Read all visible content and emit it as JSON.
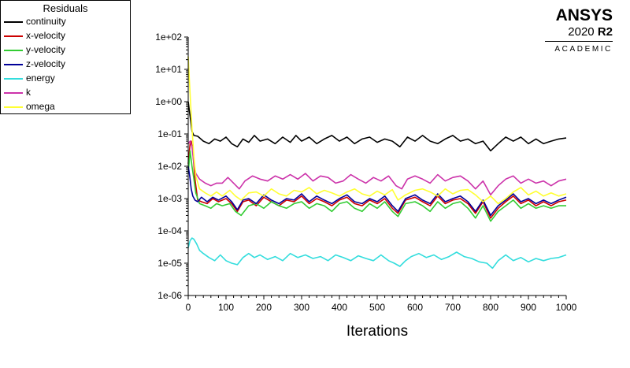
{
  "brand": {
    "name": "ANSYS",
    "version": "2020",
    "release": "R2",
    "edition": "ACADEMIC"
  },
  "chart_data": {
    "type": "line",
    "title": "",
    "xlabel": "Iterations",
    "ylabel": "",
    "xlim": [
      0,
      1000
    ],
    "ylim": [
      1e-06,
      100
    ],
    "yscale": "log",
    "grid": false,
    "legend_title": "Residuals",
    "legend_position": "top-left",
    "x_ticks": [
      "0",
      "100",
      "200",
      "300",
      "400",
      "500",
      "600",
      "700",
      "800",
      "900",
      "1000"
    ],
    "y_ticks": [
      "1e-06",
      "1e-05",
      "1e-04",
      "1e-03",
      "1e-02",
      "1e-01",
      "1e+00",
      "1e+01",
      "1e+02"
    ],
    "series": [
      {
        "name": "continuity",
        "color": "#000000",
        "x": [
          0,
          5,
          10,
          15,
          25,
          40,
          55,
          70,
          85,
          100,
          115,
          130,
          145,
          160,
          175,
          190,
          210,
          230,
          250,
          270,
          285,
          300,
          320,
          340,
          360,
          380,
          400,
          420,
          440,
          460,
          480,
          500,
          520,
          540,
          560,
          580,
          600,
          620,
          640,
          660,
          680,
          700,
          720,
          740,
          760,
          780,
          800,
          820,
          840,
          860,
          880,
          900,
          920,
          940,
          960,
          980,
          1000
        ],
        "y": [
          1.0,
          0.35,
          0.12,
          0.09,
          0.085,
          0.06,
          0.05,
          0.07,
          0.06,
          0.08,
          0.05,
          0.04,
          0.07,
          0.055,
          0.09,
          0.06,
          0.07,
          0.05,
          0.08,
          0.055,
          0.09,
          0.06,
          0.08,
          0.05,
          0.07,
          0.09,
          0.06,
          0.08,
          0.05,
          0.07,
          0.08,
          0.055,
          0.07,
          0.06,
          0.04,
          0.08,
          0.06,
          0.09,
          0.06,
          0.05,
          0.07,
          0.09,
          0.06,
          0.07,
          0.05,
          0.06,
          0.03,
          0.05,
          0.08,
          0.06,
          0.08,
          0.05,
          0.07,
          0.05,
          0.06,
          0.07,
          0.075
        ]
      },
      {
        "name": "x-velocity",
        "color": "#cc0000",
        "x": [
          0,
          5,
          8,
          12,
          18,
          25,
          35,
          50,
          65,
          80,
          100,
          115,
          130,
          145,
          160,
          180,
          200,
          220,
          240,
          260,
          280,
          300,
          320,
          340,
          360,
          380,
          400,
          420,
          440,
          460,
          480,
          500,
          520,
          540,
          555,
          575,
          600,
          620,
          640,
          660,
          680,
          700,
          720,
          740,
          760,
          780,
          800,
          820,
          840,
          860,
          880,
          900,
          920,
          940,
          960,
          980,
          1000
        ],
        "y": [
          0.012,
          0.05,
          0.06,
          0.03,
          0.004,
          0.0009,
          0.0008,
          0.0007,
          0.001,
          0.0008,
          0.001,
          0.0007,
          0.0004,
          0.0008,
          0.0009,
          0.0006,
          0.0011,
          0.0008,
          0.0006,
          0.0009,
          0.0008,
          0.0012,
          0.0007,
          0.001,
          0.0008,
          0.0006,
          0.0009,
          0.0011,
          0.0007,
          0.0006,
          0.0009,
          0.0007,
          0.001,
          0.0005,
          0.00035,
          0.0009,
          0.0011,
          0.0008,
          0.0006,
          0.0012,
          0.0007,
          0.0009,
          0.001,
          0.0007,
          0.00035,
          0.0008,
          0.00025,
          0.0005,
          0.0008,
          0.0012,
          0.0007,
          0.0009,
          0.0006,
          0.0008,
          0.0006,
          0.0008,
          0.0009
        ]
      },
      {
        "name": "y-velocity",
        "color": "#33cc33",
        "x": [
          0,
          5,
          10,
          15,
          20,
          30,
          45,
          60,
          75,
          90,
          110,
          125,
          140,
          160,
          180,
          200,
          220,
          240,
          260,
          280,
          300,
          320,
          340,
          360,
          380,
          400,
          420,
          440,
          460,
          480,
          500,
          520,
          540,
          555,
          575,
          600,
          620,
          640,
          660,
          680,
          700,
          720,
          740,
          760,
          780,
          800,
          820,
          840,
          860,
          880,
          900,
          920,
          940,
          960,
          980,
          1000
        ],
        "y": [
          0.006,
          0.03,
          0.01,
          0.004,
          0.0015,
          0.0007,
          0.0006,
          0.0005,
          0.0007,
          0.0006,
          0.0007,
          0.0004,
          0.0003,
          0.0006,
          0.0007,
          0.0005,
          0.0008,
          0.0006,
          0.0005,
          0.0007,
          0.0008,
          0.0005,
          0.0007,
          0.0006,
          0.0004,
          0.0007,
          0.0008,
          0.0005,
          0.0004,
          0.0007,
          0.0005,
          0.0008,
          0.0004,
          0.00028,
          0.0007,
          0.0008,
          0.0006,
          0.0004,
          0.0008,
          0.0005,
          0.0007,
          0.0008,
          0.0005,
          0.00025,
          0.0006,
          0.0002,
          0.0004,
          0.0006,
          0.0009,
          0.0005,
          0.0007,
          0.0005,
          0.0006,
          0.0005,
          0.0006,
          0.0006
        ]
      },
      {
        "name": "z-velocity",
        "color": "#000099",
        "x": [
          0,
          4,
          8,
          12,
          18,
          25,
          35,
          50,
          65,
          80,
          100,
          115,
          130,
          145,
          160,
          180,
          200,
          220,
          240,
          260,
          280,
          300,
          320,
          340,
          360,
          380,
          400,
          420,
          440,
          460,
          480,
          500,
          520,
          540,
          555,
          575,
          600,
          620,
          640,
          660,
          680,
          700,
          720,
          740,
          760,
          780,
          800,
          820,
          840,
          860,
          880,
          900,
          920,
          940,
          960,
          980,
          1000
        ],
        "y": [
          0.01,
          0.005,
          0.002,
          0.0012,
          0.0009,
          0.0008,
          0.0011,
          0.0008,
          0.0011,
          0.0009,
          0.0012,
          0.0008,
          0.00045,
          0.0009,
          0.001,
          0.0007,
          0.0013,
          0.0009,
          0.0007,
          0.001,
          0.0009,
          0.0014,
          0.0008,
          0.0012,
          0.0009,
          0.0007,
          0.001,
          0.0013,
          0.0008,
          0.0007,
          0.001,
          0.0008,
          0.0012,
          0.0006,
          0.0004,
          0.001,
          0.0013,
          0.0009,
          0.0007,
          0.0014,
          0.0008,
          0.001,
          0.0012,
          0.0008,
          0.0004,
          0.0009,
          0.0003,
          0.0006,
          0.0009,
          0.0014,
          0.0008,
          0.001,
          0.0007,
          0.0009,
          0.0007,
          0.0009,
          0.0011
        ]
      },
      {
        "name": "energy",
        "color": "#33dddd",
        "x": [
          0,
          5,
          10,
          15,
          22,
          30,
          40,
          55,
          70,
          85,
          100,
          115,
          130,
          145,
          160,
          175,
          190,
          210,
          230,
          250,
          270,
          290,
          310,
          330,
          350,
          370,
          390,
          410,
          430,
          450,
          470,
          490,
          510,
          530,
          545,
          560,
          575,
          590,
          610,
          630,
          650,
          670,
          690,
          710,
          730,
          750,
          770,
          790,
          805,
          820,
          840,
          860,
          880,
          900,
          920,
          940,
          960,
          980,
          1000
        ],
        "y": [
          3e-05,
          5e-05,
          6e-05,
          5.5e-05,
          4e-05,
          2.5e-05,
          2e-05,
          1.5e-05,
          1.2e-05,
          1.8e-05,
          1.2e-05,
          1e-05,
          9e-06,
          1.5e-05,
          2e-05,
          1.5e-05,
          1.8e-05,
          1.3e-05,
          1.6e-05,
          1.2e-05,
          2e-05,
          1.5e-05,
          1.8e-05,
          1.4e-05,
          1.6e-05,
          1.2e-05,
          1.8e-05,
          1.5e-05,
          1.2e-05,
          1.7e-05,
          1.4e-05,
          1.2e-05,
          1.8e-05,
          1.2e-05,
          1e-05,
          8e-06,
          1.2e-05,
          1.6e-05,
          2e-05,
          1.5e-05,
          1.8e-05,
          1.3e-05,
          1.6e-05,
          2.2e-05,
          1.6e-05,
          1.4e-05,
          1.1e-05,
          1e-05,
          7e-06,
          1.2e-05,
          1.8e-05,
          1.2e-05,
          1.5e-05,
          1.1e-05,
          1.4e-05,
          1.2e-05,
          1.4e-05,
          1.5e-05,
          1.8e-05
        ]
      },
      {
        "name": "k",
        "color": "#cc33aa",
        "x": [
          0,
          5,
          10,
          15,
          20,
          30,
          45,
          60,
          75,
          90,
          105,
          120,
          135,
          150,
          170,
          190,
          210,
          230,
          250,
          270,
          290,
          310,
          330,
          350,
          370,
          390,
          410,
          430,
          450,
          470,
          490,
          510,
          530,
          550,
          565,
          580,
          600,
          620,
          640,
          660,
          680,
          700,
          720,
          740,
          760,
          780,
          800,
          820,
          840,
          860,
          880,
          900,
          920,
          940,
          960,
          980,
          1000
        ],
        "y": [
          0.05,
          0.06,
          0.04,
          0.012,
          0.006,
          0.004,
          0.003,
          0.0025,
          0.003,
          0.003,
          0.0045,
          0.003,
          0.002,
          0.0035,
          0.005,
          0.004,
          0.0035,
          0.005,
          0.004,
          0.0055,
          0.004,
          0.006,
          0.0035,
          0.005,
          0.0045,
          0.003,
          0.0035,
          0.0055,
          0.004,
          0.003,
          0.0045,
          0.0035,
          0.005,
          0.0025,
          0.002,
          0.004,
          0.005,
          0.004,
          0.003,
          0.0055,
          0.0035,
          0.0045,
          0.005,
          0.0035,
          0.002,
          0.0035,
          0.0013,
          0.0025,
          0.004,
          0.005,
          0.003,
          0.004,
          0.003,
          0.0035,
          0.0025,
          0.0035,
          0.004
        ]
      },
      {
        "name": "omega",
        "color": "#ffff33",
        "x": [
          0,
          3,
          6,
          10,
          15,
          20,
          30,
          45,
          60,
          75,
          90,
          110,
          125,
          140,
          160,
          180,
          200,
          220,
          240,
          260,
          280,
          300,
          320,
          340,
          360,
          380,
          400,
          420,
          440,
          460,
          480,
          500,
          520,
          540,
          555,
          575,
          600,
          620,
          640,
          660,
          680,
          700,
          720,
          740,
          760,
          780,
          800,
          820,
          840,
          860,
          880,
          900,
          920,
          940,
          960,
          980,
          1000
        ],
        "y": [
          25,
          5,
          1.0,
          0.15,
          0.02,
          0.005,
          0.002,
          0.0015,
          0.0012,
          0.0016,
          0.0012,
          0.0018,
          0.0012,
          0.0009,
          0.0015,
          0.0016,
          0.0012,
          0.002,
          0.0014,
          0.0012,
          0.0018,
          0.0016,
          0.0022,
          0.0014,
          0.0018,
          0.0015,
          0.0012,
          0.0016,
          0.002,
          0.0014,
          0.0012,
          0.0017,
          0.0013,
          0.0019,
          0.0009,
          0.0013,
          0.0018,
          0.002,
          0.0016,
          0.0012,
          0.002,
          0.0014,
          0.0018,
          0.0019,
          0.0013,
          0.0008,
          0.0012,
          0.0007,
          0.001,
          0.0016,
          0.0022,
          0.0013,
          0.0017,
          0.0012,
          0.0015,
          0.0012,
          0.0014
        ]
      }
    ]
  }
}
